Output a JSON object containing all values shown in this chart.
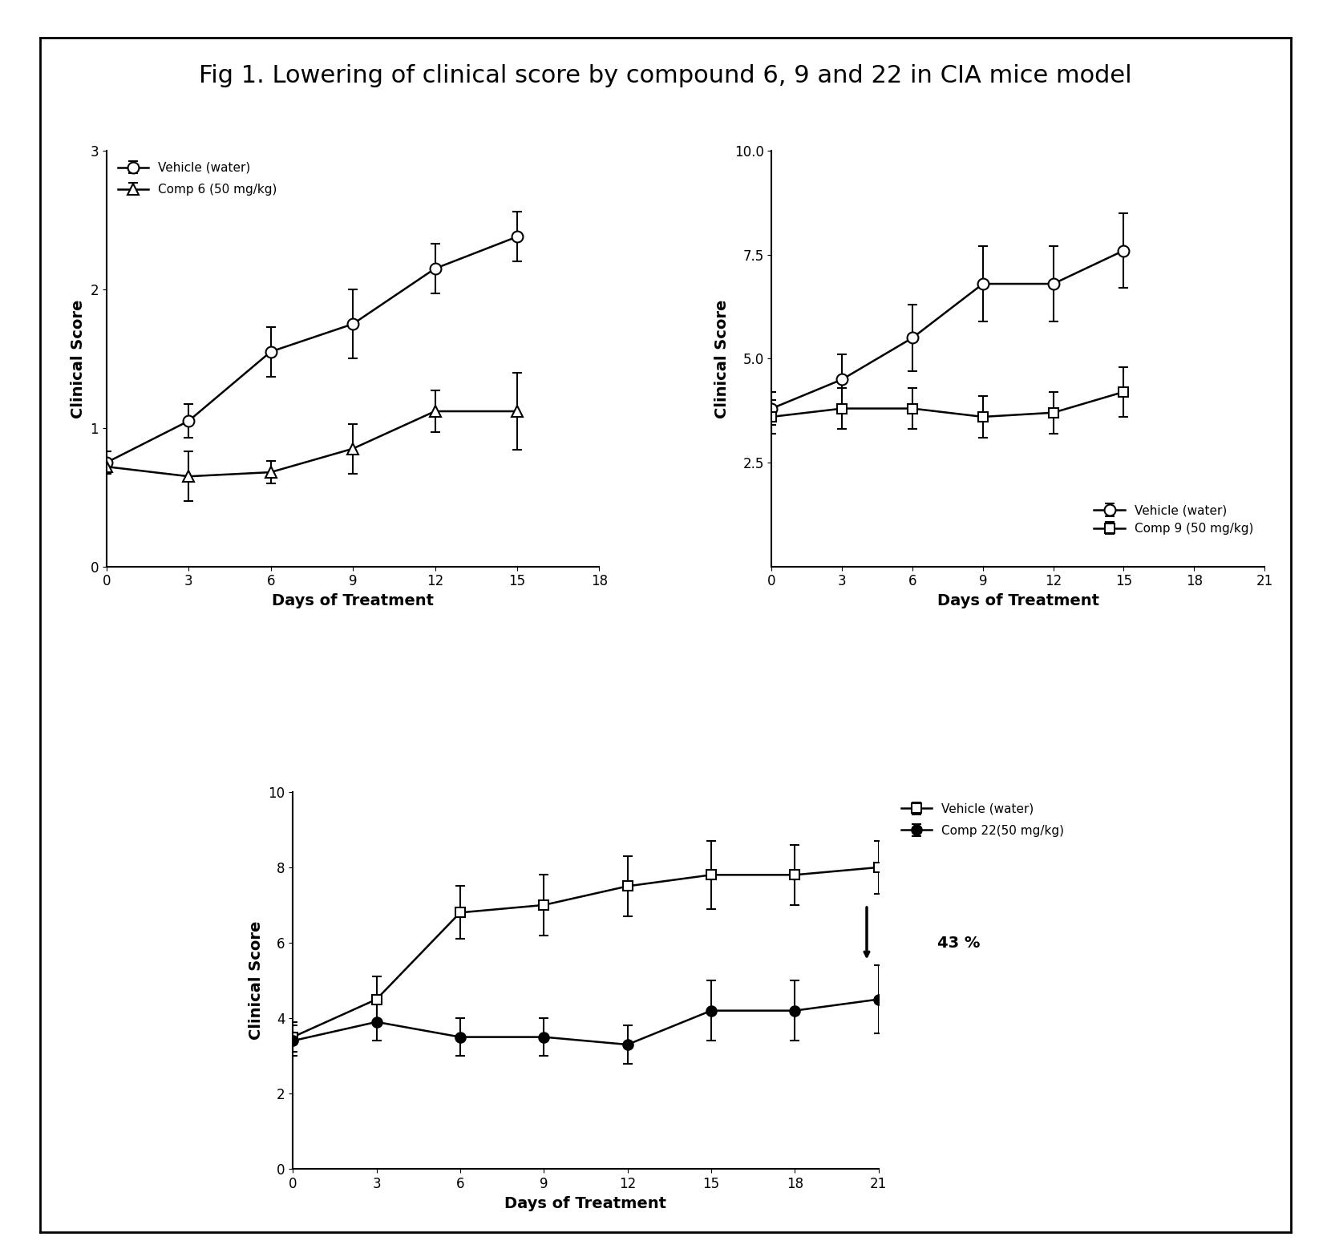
{
  "title": "Fig 1. Lowering of clinical score by compound 6, 9 and 22 in CIA mice model",
  "title_fontsize": 22,
  "plot1": {
    "days": [
      0,
      3,
      6,
      9,
      12,
      15
    ],
    "vehicle_y": [
      0.75,
      1.05,
      1.55,
      1.75,
      2.15,
      2.38
    ],
    "vehicle_err": [
      0.08,
      0.12,
      0.18,
      0.25,
      0.18,
      0.18
    ],
    "comp6_y": [
      0.72,
      0.65,
      0.68,
      0.85,
      1.12,
      1.12
    ],
    "comp6_err": [
      0.05,
      0.18,
      0.08,
      0.18,
      0.15,
      0.28
    ],
    "xlabel": "Days of Treatment",
    "ylabel": "Clinical Score",
    "xlim": [
      0,
      18
    ],
    "ylim": [
      0,
      3
    ],
    "xticks": [
      0,
      3,
      6,
      9,
      12,
      15,
      18
    ],
    "yticks": [
      0,
      1,
      2,
      3
    ],
    "legend1": "Vehicle (water)",
    "legend2": "Comp 6 (50 mg/kg)"
  },
  "plot2": {
    "days": [
      0,
      3,
      6,
      9,
      12,
      15
    ],
    "vehicle_y": [
      3.8,
      4.5,
      5.5,
      6.8,
      6.8,
      7.6
    ],
    "vehicle_err": [
      0.4,
      0.6,
      0.8,
      0.9,
      0.9,
      0.9
    ],
    "comp9_y": [
      3.6,
      3.8,
      3.8,
      3.6,
      3.7,
      4.2
    ],
    "comp9_err": [
      0.4,
      0.5,
      0.5,
      0.5,
      0.5,
      0.6
    ],
    "xlabel": "Days of Treatment",
    "ylabel": "Clinical Score",
    "xlim": [
      0,
      21
    ],
    "ylim": [
      0.0,
      10.0
    ],
    "xticks": [
      0,
      3,
      6,
      9,
      12,
      15,
      18,
      21
    ],
    "yticks": [
      2.5,
      5.0,
      7.5,
      10.0
    ],
    "yticklabels": [
      "2.5",
      "5.0",
      "7.5",
      "10.0"
    ],
    "legend1": "Vehicle (water)",
    "legend2": "Comp 9 (50 mg/kg)"
  },
  "plot3": {
    "days": [
      0,
      3,
      6,
      9,
      12,
      15,
      18,
      21
    ],
    "vehicle_y": [
      3.5,
      4.5,
      6.8,
      7.0,
      7.5,
      7.8,
      7.8,
      8.0
    ],
    "vehicle_err": [
      0.4,
      0.6,
      0.7,
      0.8,
      0.8,
      0.9,
      0.8,
      0.7
    ],
    "comp22_y": [
      3.4,
      3.9,
      3.5,
      3.5,
      3.3,
      4.2,
      4.2,
      4.5
    ],
    "comp22_err": [
      0.4,
      0.5,
      0.5,
      0.5,
      0.5,
      0.8,
      0.8,
      0.9
    ],
    "xlabel": "Days of Treatment",
    "ylabel": "Clinical Score",
    "xlim": [
      0,
      21
    ],
    "ylim": [
      0,
      10
    ],
    "xticks": [
      0,
      3,
      6,
      9,
      12,
      15,
      18,
      21
    ],
    "yticks": [
      0,
      2,
      4,
      6,
      8,
      10
    ],
    "legend1": "Comp 22(50 mg/kg)",
    "legend2": "Vehicle (water)",
    "annotation": "43 %"
  },
  "line_color": "#000000",
  "bg_color": "#ffffff",
  "marker_vehicle": "o",
  "marker_comp6": "^",
  "marker_comp9": "s",
  "marker_comp22_filled": "o",
  "marker_vehicle3_open": "s"
}
